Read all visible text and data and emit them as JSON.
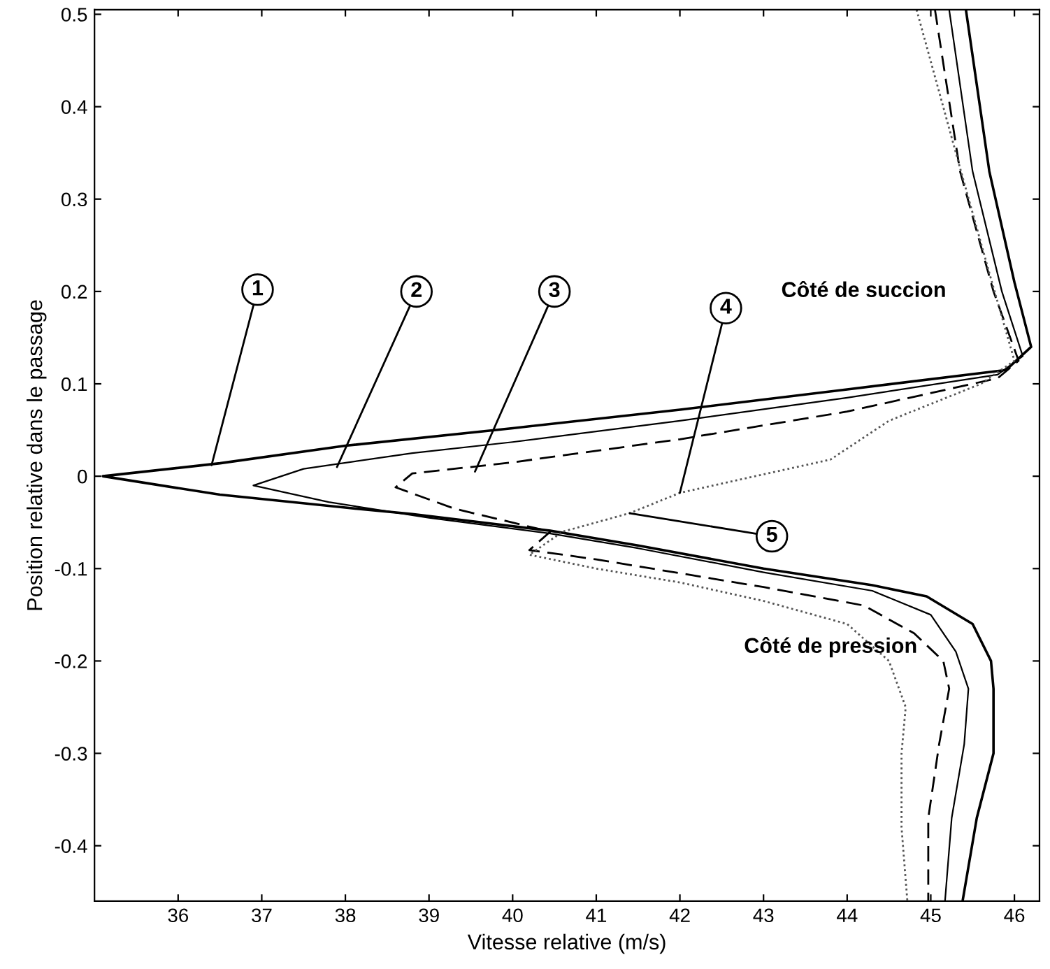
{
  "chart_data": {
    "type": "line",
    "xlabel": "Vitesse relative (m/s)",
    "ylabel": "Position relative dans le passage",
    "xlim": [
      35.0,
      46.3
    ],
    "ylim": [
      -0.46,
      0.505
    ],
    "xticks": [
      36,
      37,
      38,
      39,
      40,
      41,
      42,
      43,
      44,
      45,
      46
    ],
    "yticks": [
      -0.4,
      -0.3,
      -0.2,
      -0.1,
      0,
      0.1,
      0.2,
      0.3,
      0.4,
      0.5
    ],
    "grid": false,
    "legend": false,
    "series": [
      {
        "color": "#000000",
        "line_style": "solid",
        "x": [
          45.42,
          45.7,
          46.0,
          46.2,
          45.9,
          44.0,
          42.0,
          40.0,
          38.0,
          36.5,
          35.1,
          36.5,
          38.0,
          38.8,
          40.45,
          41.5,
          43.0,
          44.3,
          44.95,
          45.5,
          45.72,
          45.75,
          45.75,
          45.55,
          45.38
        ],
        "values": [
          0.505,
          0.33,
          0.21,
          0.14,
          0.115,
          0.094,
          0.072,
          0.052,
          0.033,
          0.014,
          0.0,
          -0.02,
          -0.034,
          -0.041,
          -0.059,
          -0.075,
          -0.1,
          -0.118,
          -0.13,
          -0.16,
          -0.2,
          -0.23,
          -0.3,
          -0.37,
          -0.46
        ]
      },
      {
        "color": "#000000",
        "line_style": "solid",
        "x": [
          45.22,
          45.5,
          45.85,
          46.1,
          45.8,
          44.0,
          42.0,
          40.0,
          38.8,
          37.5,
          36.9,
          37.8,
          39.0,
          40.45,
          41.5,
          43.0,
          44.3,
          45.0,
          45.3,
          45.45,
          45.4,
          45.25,
          45.17
        ],
        "values": [
          0.505,
          0.33,
          0.2,
          0.13,
          0.11,
          0.085,
          0.06,
          0.037,
          0.025,
          0.008,
          -0.01,
          -0.028,
          -0.045,
          -0.062,
          -0.078,
          -0.104,
          -0.124,
          -0.15,
          -0.19,
          -0.23,
          -0.29,
          -0.37,
          -0.46
        ]
      },
      {
        "color": "#000000",
        "line_style": "dashed",
        "x": [
          45.05,
          45.35,
          45.75,
          46.05,
          45.8,
          44.0,
          42.0,
          40.0,
          38.8,
          38.6,
          39.3,
          40.45,
          40.2,
          41.0,
          42.0,
          43.0,
          44.2,
          44.8,
          45.15,
          45.22,
          45.1,
          44.97,
          44.97
        ],
        "values": [
          0.505,
          0.33,
          0.2,
          0.125,
          0.106,
          0.07,
          0.04,
          0.015,
          0.003,
          -0.012,
          -0.035,
          -0.06,
          -0.08,
          -0.09,
          -0.105,
          -0.12,
          -0.14,
          -0.17,
          -0.2,
          -0.23,
          -0.29,
          -0.37,
          -0.46
        ]
      },
      {
        "color": "#555555",
        "line_style": "dotted",
        "x": [
          44.83,
          45.3,
          45.7,
          46.0,
          45.6,
          44.5,
          43.8,
          42.0,
          41.4,
          40.6,
          40.2,
          41.0,
          42.0,
          43.0,
          44.0,
          44.5,
          44.7,
          44.65,
          44.65,
          44.72
        ],
        "values": [
          0.505,
          0.35,
          0.22,
          0.125,
          0.1,
          0.06,
          0.018,
          -0.018,
          -0.04,
          -0.06,
          -0.085,
          -0.1,
          -0.115,
          -0.135,
          -0.16,
          -0.2,
          -0.25,
          -0.3,
          -0.38,
          -0.46
        ]
      }
    ],
    "annotations": [
      {
        "text": "1",
        "x": 36.4,
        "y": 0.012
      },
      {
        "text": "2",
        "x": 37.9,
        "y": 0.01
      },
      {
        "text": "3",
        "x": 39.55,
        "y": 0.005
      },
      {
        "text": "4",
        "x": 42.0,
        "y": -0.018
      },
      {
        "text": "5",
        "x": 41.4,
        "y": -0.04
      },
      "Côté de succion",
      "Côté de pression"
    ]
  }
}
